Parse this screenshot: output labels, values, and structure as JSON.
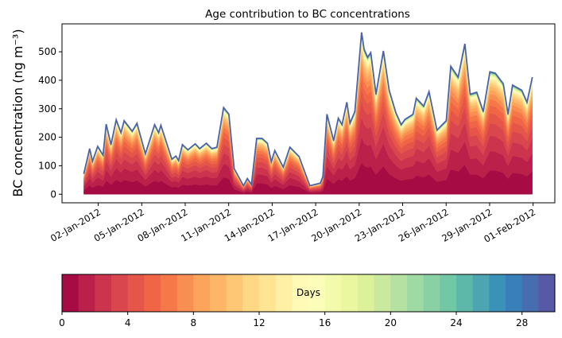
{
  "chart_data": {
    "type": "area",
    "stacked": true,
    "title": "Age contribution to BC concentrations",
    "xlabel": "",
    "ylabel": "BC concentration (ng m⁻³)",
    "x_units": "days since 01-Jan-2012",
    "xlim": [
      -1.5,
      32.5
    ],
    "ylim": [
      -30,
      598
    ],
    "yticks": [
      0,
      100,
      200,
      300,
      400,
      500
    ],
    "xticks": [
      {
        "day": 1,
        "label": "02-Jan-2012"
      },
      {
        "day": 4,
        "label": "05-Jan-2012"
      },
      {
        "day": 7,
        "label": "08-Jan-2012"
      },
      {
        "day": 10,
        "label": "11-Jan-2012"
      },
      {
        "day": 13,
        "label": "14-Jan-2012"
      },
      {
        "day": 16,
        "label": "17-Jan-2012"
      },
      {
        "day": 19,
        "label": "20-Jan-2012"
      },
      {
        "day": 22,
        "label": "23-Jan-2012"
      },
      {
        "day": 25,
        "label": "26-Jan-2012"
      },
      {
        "day": 28,
        "label": "29-Jan-2012"
      },
      {
        "day": 31,
        "label": "01-Feb-2012"
      }
    ],
    "total": {
      "x": [
        0.0,
        0.41,
        0.6,
        0.96,
        1.33,
        1.55,
        1.88,
        2.24,
        2.57,
        2.79,
        3.34,
        3.67,
        4.25,
        4.89,
        5.17,
        5.32,
        6.08,
        6.36,
        6.54,
        6.81,
        7.18,
        7.69,
        8.0,
        8.46,
        8.83,
        9.19,
        9.65,
        10.01,
        10.38,
        11.02,
        11.29,
        11.57,
        11.93,
        12.3,
        12.67,
        12.94,
        13.18,
        13.76,
        14.22,
        14.86,
        15.6,
        16.32,
        16.5,
        16.78,
        17.24,
        17.56,
        17.82,
        18.15,
        18.37,
        18.7,
        19.17,
        19.34,
        19.58,
        19.8,
        20.16,
        20.67,
        21.07,
        21.53,
        21.9,
        22.17,
        22.72,
        22.94,
        23.45,
        23.82,
        24.37,
        25.01,
        25.32,
        25.83,
        26.29,
        26.66,
        27.11,
        27.56,
        28.02,
        28.39,
        28.94,
        29.27,
        29.58,
        30.22,
        30.58,
        30.95
      ],
      "y": [
        72,
        160,
        115,
        168,
        137,
        246,
        174,
        261,
        216,
        258,
        221,
        249,
        142,
        244,
        216,
        242,
        123,
        134,
        118,
        174,
        156,
        177,
        160,
        179,
        160,
        165,
        304,
        281,
        90,
        30,
        55,
        34,
        196,
        196,
        179,
        114,
        153,
        95,
        165,
        132,
        30,
        39,
        62,
        281,
        188,
        267,
        244,
        323,
        249,
        290,
        568,
        509,
        481,
        497,
        351,
        503,
        365,
        286,
        244,
        263,
        281,
        337,
        309,
        360,
        225,
        258,
        449,
        411,
        528,
        351,
        358,
        290,
        430,
        425,
        388,
        281,
        383,
        365,
        323,
        411
      ]
    },
    "age_bins_days": 30,
    "age_decay_days": 4.5,
    "colormap_anchors": [
      "#9e0142",
      "#d53e4f",
      "#f46d43",
      "#fdae61",
      "#fee08b",
      "#ffffbf",
      "#e6f598",
      "#abdda4",
      "#66c2a5",
      "#3288bd",
      "#5e4fa2"
    ],
    "outline_color": "#4a62aa",
    "colorbar": {
      "label": "Days",
      "range": [
        0,
        30
      ],
      "ticks": [
        "0",
        "4",
        "8",
        "12",
        "16",
        "20",
        "24",
        "28"
      ]
    }
  }
}
